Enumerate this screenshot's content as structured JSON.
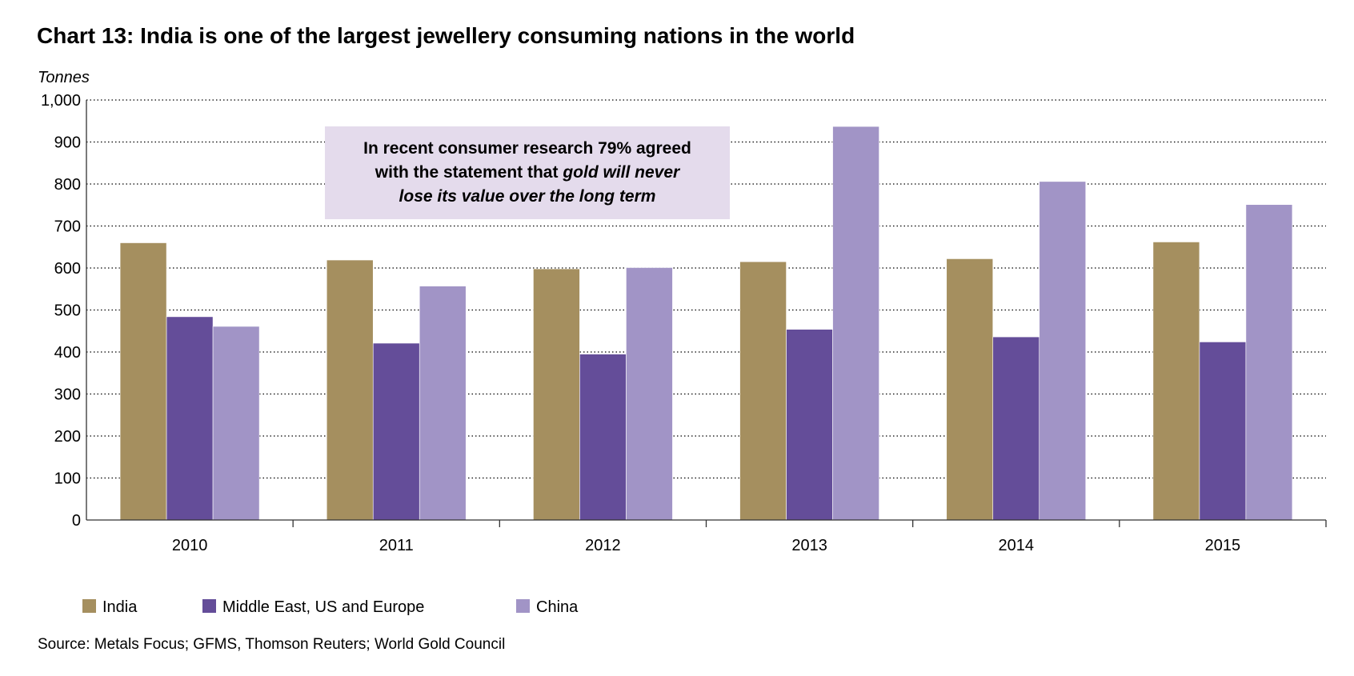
{
  "chart_data": {
    "type": "bar",
    "title": "Chart 13: India is one of the largest jewellery consuming nations in the world",
    "ylabel": "Tonnes",
    "xlabel": "",
    "ylim": [
      0,
      1000
    ],
    "yticks": [
      "0",
      "100",
      "200",
      "300",
      "400",
      "500",
      "600",
      "700",
      "800",
      "900",
      "1,000"
    ],
    "grid": true,
    "categories": [
      "2010",
      "2011",
      "2012",
      "2013",
      "2014",
      "2015"
    ],
    "series": [
      {
        "name": "India",
        "color": "#a58f5f",
        "values": [
          660,
          619,
          598,
          615,
          622,
          662
        ]
      },
      {
        "name": "Middle East, US and Europe",
        "color": "#644d99",
        "values": [
          484,
          421,
          395,
          454,
          436,
          424
        ]
      },
      {
        "name": "China",
        "color": "#a194c6",
        "values": [
          461,
          557,
          601,
          937,
          806,
          751
        ]
      }
    ],
    "legend_position": "bottom-left",
    "annotation": {
      "line1": "In recent consumer research 79% agreed",
      "line2a": "with the statement that ",
      "line2b": "gold will never",
      "line3": "lose its value over the long term",
      "bg": "#e4dbec"
    },
    "source": "Source: Metals Focus; GFMS, Thomson Reuters; World Gold Council"
  }
}
